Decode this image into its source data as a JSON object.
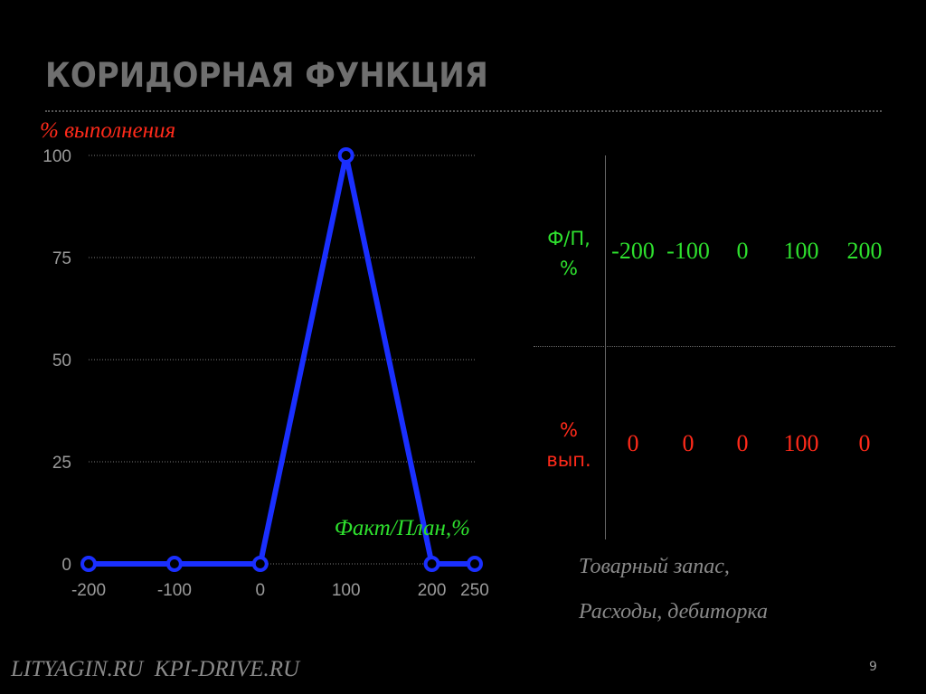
{
  "title": "КОРИДОРНАЯ ФУНКЦИЯ",
  "colors": {
    "background": "#000000",
    "line": "#1a2fff",
    "green": "#2ee02e",
    "red": "#ff2a1a",
    "grey_text": "#8a8a8a",
    "title": "#6f6f6f"
  },
  "chart_data": {
    "type": "line",
    "ylabel": "% выполнения",
    "xlabel": "Факт/План,%",
    "x": [
      -200,
      -100,
      0,
      100,
      200,
      250
    ],
    "x_ticks": [
      "-200",
      "-100",
      "0",
      "100",
      "200",
      "250"
    ],
    "y_ticks": [
      "0",
      "25",
      "50",
      "75",
      "100"
    ],
    "ylim": [
      0,
      100
    ],
    "xlim": [
      -200,
      250
    ],
    "grid": "horizontal dotted",
    "markers": "circle",
    "series": [
      {
        "values": [
          0,
          0,
          0,
          100,
          0,
          0
        ]
      }
    ]
  },
  "table": {
    "header_fp": "Ф/П, %",
    "header_vyp": "% вып.",
    "fp_values": [
      "-200",
      "-100",
      "0",
      "100",
      "200"
    ],
    "vyp_values": [
      "0",
      "0",
      "0",
      "100",
      "0"
    ]
  },
  "notes": [
    "Товарный запас,",
    "Расходы, дебиторка"
  ],
  "footer": "LITYAGIN.RU  KPI-DRIVE.RU",
  "page_number": "9"
}
